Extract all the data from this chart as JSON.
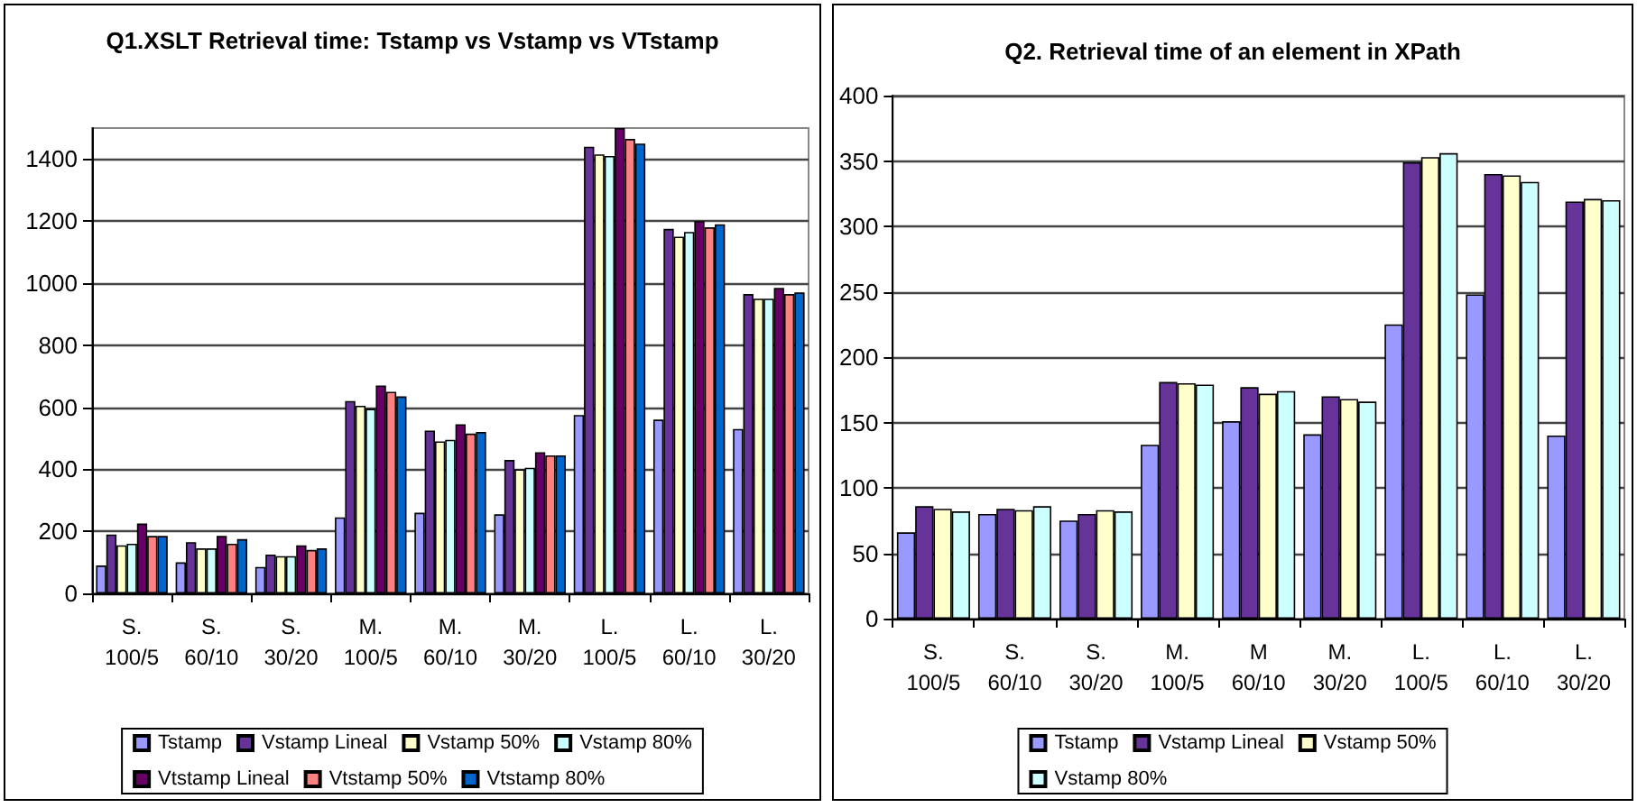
{
  "chart_data": [
    {
      "type": "bar",
      "title": "Q1.XSLT Retrieval time: Tstamp vs Vstamp vs VTstamp",
      "categories": [
        "S.\n100/5",
        "S.\n60/10",
        "S.\n30/20",
        "M.\n100/5",
        "M.\n60/10",
        "M.\n30/20",
        "L.\n100/5",
        "L.\n60/10",
        "L.\n30/20"
      ],
      "ylim": [
        0,
        1500
      ],
      "yticks": [
        0,
        200,
        400,
        600,
        800,
        1000,
        1200,
        1400
      ],
      "grid": "y",
      "legend": "bottom",
      "series": [
        {
          "name": "Tstamp",
          "color": "#9999ff",
          "values": [
            90,
            100,
            85,
            245,
            260,
            255,
            575,
            560,
            530
          ]
        },
        {
          "name": "Vstamp Lineal",
          "color": "#663399",
          "values": [
            190,
            165,
            125,
            620,
            525,
            430,
            1440,
            1175,
            965
          ]
        },
        {
          "name": "Vstamp 50%",
          "color": "#ffffcc",
          "values": [
            155,
            145,
            120,
            605,
            490,
            400,
            1415,
            1150,
            950
          ]
        },
        {
          "name": "Vstamp 80%",
          "color": "#ccffff",
          "values": [
            160,
            145,
            120,
            595,
            495,
            405,
            1410,
            1165,
            950
          ]
        },
        {
          "name": "Vtstamp Lineal",
          "color": "#660066",
          "values": [
            225,
            185,
            155,
            670,
            545,
            455,
            1500,
            1200,
            985
          ]
        },
        {
          "name": "Vtstamp 50%",
          "color": "#ff8080",
          "values": [
            185,
            160,
            140,
            650,
            515,
            445,
            1465,
            1180,
            965
          ]
        },
        {
          "name": "Vtstamp 80%",
          "color": "#0066cc",
          "values": [
            185,
            175,
            145,
            635,
            520,
            445,
            1450,
            1190,
            970
          ]
        }
      ]
    },
    {
      "type": "bar",
      "title": "Q2. Retrieval time of an element in XPath",
      "categories": [
        "S.\n100/5",
        "S.\n60/10",
        "S.\n30/20",
        "M.\n100/5",
        "M\n60/10",
        "M.\n30/20",
        "L.\n100/5",
        "L.\n60/10",
        "L.\n30/20"
      ],
      "ylim": [
        0,
        400
      ],
      "yticks": [
        0,
        50,
        100,
        150,
        200,
        250,
        300,
        350,
        400
      ],
      "grid": "y",
      "legend": "bottom",
      "series": [
        {
          "name": "Tstamp",
          "color": "#9999ff",
          "values": [
            66,
            80,
            75,
            133,
            151,
            141,
            225,
            248,
            140
          ]
        },
        {
          "name": "Vstamp Lineal",
          "color": "#663399",
          "values": [
            86,
            84,
            80,
            181,
            177,
            170,
            349,
            340,
            319
          ]
        },
        {
          "name": "Vstamp 50%",
          "color": "#ffffcc",
          "values": [
            84,
            83,
            83,
            180,
            172,
            168,
            353,
            339,
            321
          ]
        },
        {
          "name": "Vstamp 80%",
          "color": "#ccffff",
          "values": [
            82,
            86,
            82,
            179,
            174,
            166,
            356,
            334,
            320
          ]
        }
      ]
    }
  ]
}
